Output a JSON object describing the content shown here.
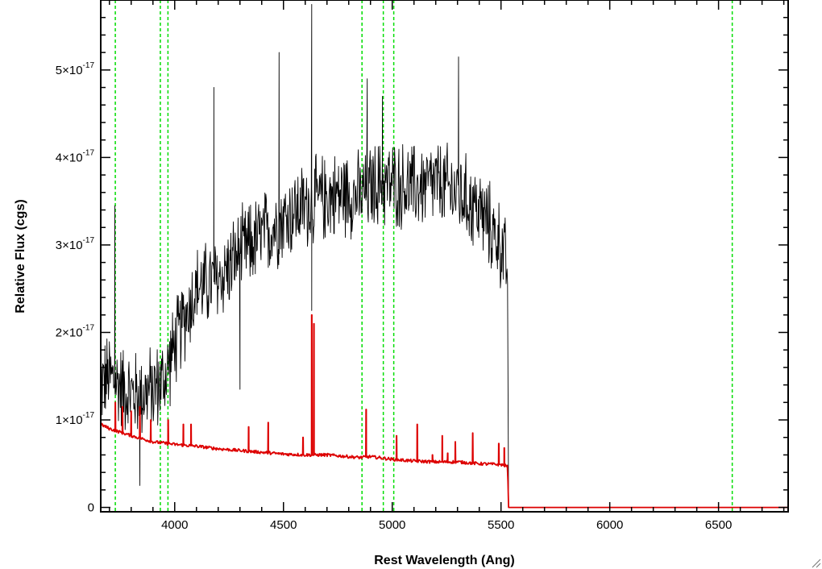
{
  "chart_data": {
    "type": "line",
    "title": "",
    "xlabel": "Rest Wavelength (Ang)",
    "ylabel": "Relative Flux (cgs)",
    "xlim": [
      3660,
      6820
    ],
    "ylim": [
      -5e-19,
      5.8e-17
    ],
    "x_ticks": [
      {
        "value": 4000,
        "label": "4000"
      },
      {
        "value": 4500,
        "label": "4500"
      },
      {
        "value": 5000,
        "label": "5000"
      },
      {
        "value": 5500,
        "label": "5500"
      },
      {
        "value": 6000,
        "label": "6000"
      },
      {
        "value": 6500,
        "label": "6500"
      }
    ],
    "y_ticks": [
      {
        "value": 0,
        "mantissa": "0",
        "exponent": ""
      },
      {
        "value": 1e-17,
        "mantissa": "1×10",
        "exponent": "-17"
      },
      {
        "value": 2e-17,
        "mantissa": "2×10",
        "exponent": "-17"
      },
      {
        "value": 3e-17,
        "mantissa": "3×10",
        "exponent": "-17"
      },
      {
        "value": 4e-17,
        "mantissa": "4×10",
        "exponent": "-17"
      },
      {
        "value": 5e-17,
        "mantissa": "5×10",
        "exponent": "-17"
      }
    ],
    "grid": false,
    "series": [
      {
        "color": "#000000",
        "style": "noisy observed spectrum",
        "x": [
          3660,
          3700,
          3750,
          3800,
          3850,
          3900,
          3950,
          3980,
          4050,
          4100,
          4200,
          4300,
          4400,
          4500,
          4600,
          4700,
          4800,
          4850,
          4900,
          4950,
          5000,
          5100,
          5200,
          5300,
          5400,
          5450,
          5500,
          5530,
          5535
        ],
        "y": [
          1.4e-17,
          1.5e-17,
          1.4e-17,
          1.3e-17,
          1.3e-17,
          1.35e-17,
          1.45e-17,
          1.7e-17,
          2.2e-17,
          2.5e-17,
          2.6e-17,
          2.9e-17,
          3.1e-17,
          3.3e-17,
          3.45e-17,
          3.55e-17,
          3.6e-17,
          3.55e-17,
          3.65e-17,
          3.7e-17,
          3.7e-17,
          3.65e-17,
          3.7e-17,
          3.6e-17,
          3.4e-17,
          3.2e-17,
          3e-17,
          2.7e-17,
          0
        ],
        "noise": 4.5e-18,
        "spikes": [
          {
            "x": 3725,
            "y": 3.45e-17
          },
          {
            "x": 4630,
            "y": 5.75e-17
          },
          {
            "x": 4480,
            "y": 5.2e-17
          },
          {
            "x": 4885,
            "y": 4.9e-17
          },
          {
            "x": 4955,
            "y": 4.7e-17
          },
          {
            "x": 5305,
            "y": 5.15e-17
          },
          {
            "x": 4180,
            "y": 4.8e-17
          },
          {
            "x": 4300,
            "y": 1.35e-17
          },
          {
            "x": 3840,
            "y": 2.5e-18
          },
          {
            "x": 4630,
            "y": 2.25e-17
          }
        ],
        "tail": {
          "x_start": 5535,
          "x_end": 6820,
          "y": 0
        }
      },
      {
        "color": "#dd0000",
        "style": "model continuum with emission lines",
        "x": [
          3660,
          3700,
          3800,
          3900,
          4000,
          4100,
          4200,
          4300,
          4400,
          4500,
          4600,
          4700,
          4800,
          4850,
          4900,
          5000,
          5100,
          5200,
          5300,
          5400,
          5500,
          5530,
          5535,
          6820
        ],
        "y": [
          9.5e-18,
          9e-18,
          8.2e-18,
          7.5e-18,
          7.2e-18,
          7e-18,
          6.7e-18,
          6.5e-18,
          6.3e-18,
          6.1e-18,
          6e-18,
          6e-18,
          5.8e-18,
          5.7e-18,
          5.8e-18,
          5.5e-18,
          5.3e-18,
          5.2e-18,
          5.2e-18,
          5e-18,
          4.9e-18,
          4.7e-18,
          0,
          0
        ],
        "lines": [
          {
            "x": 3727,
            "y": 1.2e-17
          },
          {
            "x": 3760,
            "y": 1.15e-17
          },
          {
            "x": 3800,
            "y": 1.1e-17
          },
          {
            "x": 3840,
            "y": 1.15e-17
          },
          {
            "x": 3890,
            "y": 1e-17
          },
          {
            "x": 3970,
            "y": 1e-17
          },
          {
            "x": 4040,
            "y": 9.5e-18
          },
          {
            "x": 4075,
            "y": 9.5e-18
          },
          {
            "x": 4340,
            "y": 9.2e-18
          },
          {
            "x": 4430,
            "y": 9.7e-18
          },
          {
            "x": 4590,
            "y": 8e-18
          },
          {
            "x": 4630,
            "y": 2.2e-17
          },
          {
            "x": 4640,
            "y": 2.1e-17
          },
          {
            "x": 4880,
            "y": 1.12e-17
          },
          {
            "x": 5020,
            "y": 8.2e-18
          },
          {
            "x": 5115,
            "y": 9.5e-18
          },
          {
            "x": 5185,
            "y": 6e-18
          },
          {
            "x": 5230,
            "y": 8.2e-18
          },
          {
            "x": 5255,
            "y": 6.2e-18
          },
          {
            "x": 5290,
            "y": 7.5e-18
          },
          {
            "x": 5370,
            "y": 8.5e-18
          },
          {
            "x": 5490,
            "y": 7.3e-18
          },
          {
            "x": 5515,
            "y": 6.8e-18
          }
        ]
      }
    ],
    "vertical_markers": {
      "color": "#00dd00",
      "style": "dashed",
      "x": [
        3727,
        3934,
        3969,
        4861,
        4959,
        5007,
        6563
      ]
    }
  }
}
